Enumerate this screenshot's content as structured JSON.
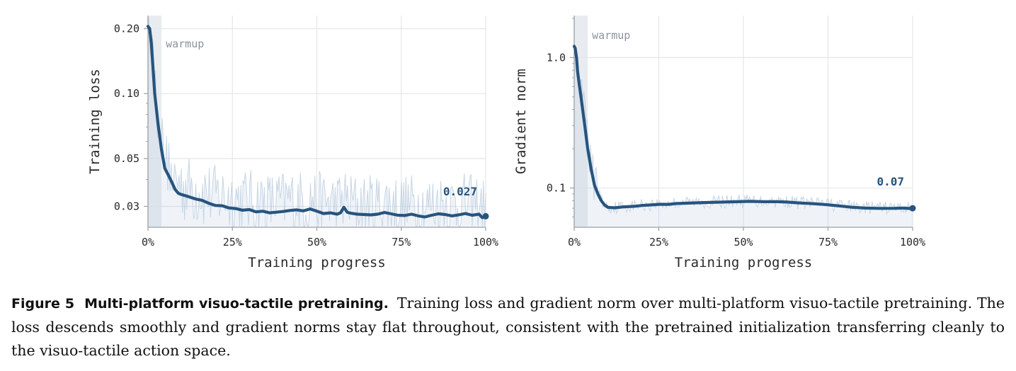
{
  "chart_data": [
    {
      "type": "line",
      "title": "",
      "xlabel": "Training progress",
      "ylabel": "Training loss",
      "yscale": "log",
      "xlim": [
        0,
        100
      ],
      "ylim": [
        0.024,
        0.23
      ],
      "xticks": [
        0,
        25,
        50,
        75,
        100
      ],
      "xtick_labels": [
        "0%",
        "25%",
        "50%",
        "75%",
        "100%"
      ],
      "yticks": [
        0.03,
        0.05,
        0.1,
        0.2
      ],
      "ytick_labels": [
        "0.03",
        "0.05",
        "0.10",
        "0.20"
      ],
      "grid": true,
      "warmup_label": "warmup",
      "warmup_end": 4,
      "final_value_label": "0.027",
      "series": [
        {
          "x": [
            0,
            0.5,
            1,
            1.5,
            2,
            3,
            4,
            5,
            6,
            7,
            8,
            9,
            10,
            12,
            14,
            16,
            18,
            20,
            22,
            24,
            26,
            28,
            30,
            32,
            34,
            36,
            38,
            40,
            42,
            44,
            46,
            48,
            50,
            52,
            54,
            56,
            57,
            58,
            59,
            60,
            62,
            64,
            66,
            68,
            70,
            72,
            74,
            76,
            78,
            80,
            82,
            84,
            86,
            88,
            90,
            92,
            94,
            96,
            98,
            99,
            100
          ],
          "y": [
            0.205,
            0.2,
            0.17,
            0.13,
            0.1,
            0.072,
            0.055,
            0.045,
            0.042,
            0.039,
            0.036,
            0.0345,
            0.034,
            0.0333,
            0.0325,
            0.032,
            0.031,
            0.0303,
            0.0302,
            0.0295,
            0.0293,
            0.0288,
            0.029,
            0.0283,
            0.0285,
            0.028,
            0.0282,
            0.0284,
            0.0287,
            0.0289,
            0.0286,
            0.0292,
            0.0285,
            0.0278,
            0.028,
            0.0276,
            0.028,
            0.0297,
            0.0282,
            0.0279,
            0.0276,
            0.0275,
            0.0274,
            0.0276,
            0.0281,
            0.0277,
            0.0273,
            0.0272,
            0.0276,
            0.0271,
            0.0268,
            0.0273,
            0.0277,
            0.0275,
            0.0271,
            0.0274,
            0.0278,
            0.0273,
            0.0276,
            0.0266,
            0.027
          ]
        }
      ]
    },
    {
      "type": "line",
      "title": "",
      "xlabel": "Training progress",
      "ylabel": "Gradient norm",
      "yscale": "log",
      "xlim": [
        0,
        100
      ],
      "ylim": [
        0.05,
        2.1
      ],
      "xticks": [
        0,
        25,
        50,
        75,
        100
      ],
      "xtick_labels": [
        "0%",
        "25%",
        "50%",
        "75%",
        "100%"
      ],
      "yticks": [
        0.1,
        1.0
      ],
      "ytick_labels": [
        "0.1",
        "1.0"
      ],
      "grid": true,
      "warmup_label": "warmup",
      "warmup_end": 4,
      "final_value_label": "0.07",
      "series": [
        {
          "x": [
            0,
            0.3,
            0.7,
            1,
            1.5,
            2,
            3,
            4,
            5,
            6,
            7,
            8,
            9,
            10,
            12,
            14,
            16,
            18,
            20,
            22,
            25,
            28,
            30,
            33,
            36,
            40,
            44,
            48,
            52,
            56,
            60,
            63,
            66,
            70,
            74,
            78,
            82,
            86,
            90,
            94,
            97,
            99,
            100
          ],
          "y": [
            1.22,
            1.18,
            1.0,
            0.78,
            0.62,
            0.5,
            0.32,
            0.2,
            0.14,
            0.105,
            0.09,
            0.08,
            0.074,
            0.071,
            0.0705,
            0.0715,
            0.072,
            0.0725,
            0.0735,
            0.074,
            0.075,
            0.075,
            0.076,
            0.0765,
            0.077,
            0.0775,
            0.078,
            0.0785,
            0.079,
            0.0785,
            0.0785,
            0.078,
            0.077,
            0.076,
            0.0748,
            0.073,
            0.0712,
            0.0702,
            0.0698,
            0.0698,
            0.0702,
            0.0697,
            0.07
          ]
        }
      ]
    }
  ],
  "colors": {
    "series": "#27547e",
    "raw": "#b7c9dd",
    "warmup": "#d6dce4",
    "grid": "#e4e6ea",
    "axis": "#9a9fa6"
  },
  "caption": {
    "label": "Figure 5",
    "title": "Multi-platform visuo-tactile pretraining.",
    "text": "Training loss and gradient norm over multi-platform visuo-tactile pretraining. The loss descends smoothly and gradient norms stay flat throughout, consistent with the pretrained initialization transferring cleanly to the visuo-tactile action space."
  }
}
